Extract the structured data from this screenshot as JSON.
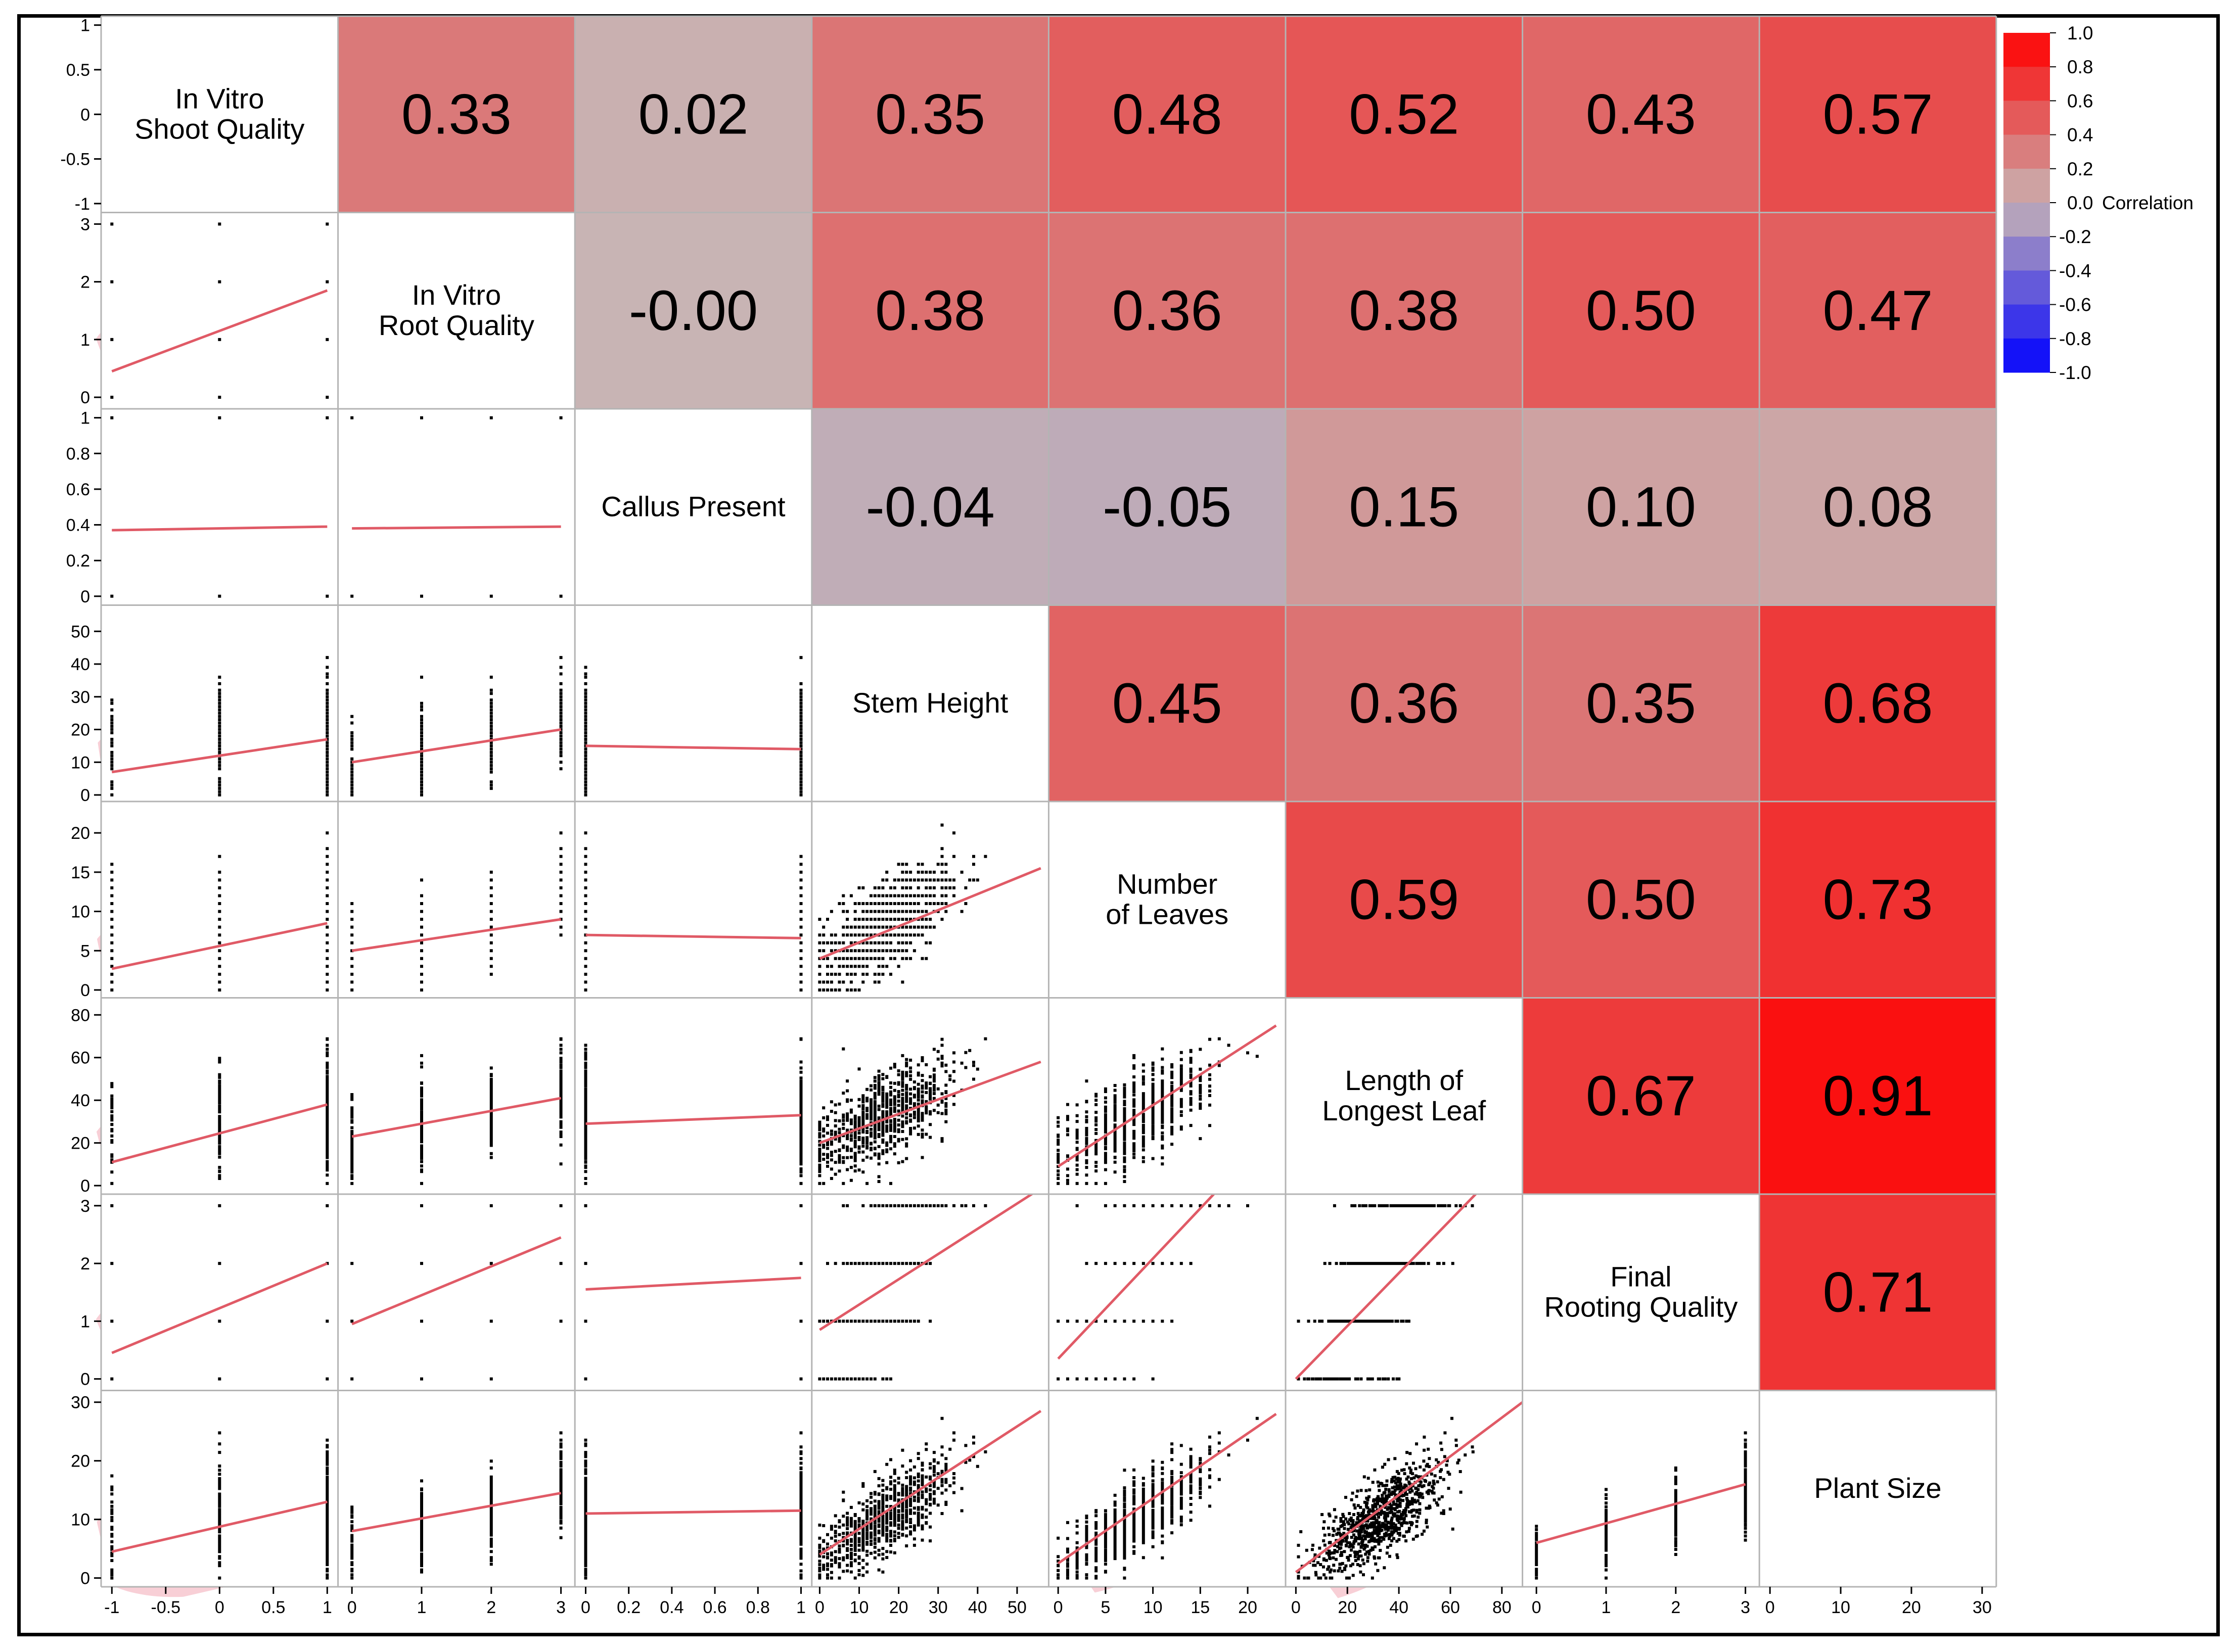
{
  "figure": {
    "legend_title": "Correlation"
  },
  "colors": {
    "positive_max": "#ff0000",
    "neutral": "#c8b4b4",
    "negative_max": "#0000ff",
    "fit_line": "#e05a66",
    "ellipse_fill": "#f8cfd6",
    "grid": "#b4b4b4",
    "points": "#000000"
  },
  "chart_data": {
    "type": "scatterplot-matrix",
    "variables": [
      {
        "name": "In Vitro Shoot Quality",
        "lines": [
          "In Vitro",
          "Shoot Quality"
        ],
        "range": [
          -1.1,
          1.1
        ],
        "ticks": [
          "-1",
          "-0.5",
          "0",
          "0.5",
          "1"
        ],
        "tick_values": [
          -1,
          -0.5,
          0,
          0.5,
          1
        ]
      },
      {
        "name": "In Vitro Root Quality",
        "lines": [
          "In Vitro",
          "Root Quality"
        ],
        "range": [
          -0.2,
          3.2
        ],
        "ticks": [
          "0",
          "1",
          "2",
          "3"
        ],
        "tick_values": [
          0,
          1,
          2,
          3
        ]
      },
      {
        "name": "Callus Present",
        "lines": [
          "Callus Present"
        ],
        "range": [
          -0.05,
          1.05
        ],
        "ticks": [
          "0",
          "0.2",
          "0.4",
          "0.6",
          "0.8",
          "1"
        ],
        "tick_values": [
          0,
          0.2,
          0.4,
          0.6,
          0.8,
          1
        ]
      },
      {
        "name": "Stem Height",
        "lines": [
          "Stem Height"
        ],
        "range": [
          -2,
          58
        ],
        "ticks": [
          "0",
          "10",
          "20",
          "30",
          "40",
          "50"
        ],
        "tick_values": [
          0,
          10,
          20,
          30,
          40,
          50
        ]
      },
      {
        "name": "Number of Leaves",
        "lines": [
          "Number",
          "of Leaves"
        ],
        "range": [
          -1,
          24
        ],
        "ticks": [
          "0",
          "5",
          "10",
          "15",
          "20"
        ],
        "tick_values": [
          0,
          5,
          10,
          15,
          20
        ]
      },
      {
        "name": "Length of Longest Leaf",
        "lines": [
          "Length of",
          "Longest Leaf"
        ],
        "range": [
          -4,
          88
        ],
        "ticks": [
          "0",
          "20",
          "40",
          "60",
          "80"
        ],
        "tick_values": [
          0,
          20,
          40,
          60,
          80
        ]
      },
      {
        "name": "Final Rooting Quality",
        "lines": [
          "Final",
          "Rooting Quality"
        ],
        "range": [
          -0.2,
          3.2
        ],
        "ticks": [
          "0",
          "1",
          "2",
          "3"
        ],
        "tick_values": [
          0,
          1,
          2,
          3
        ]
      },
      {
        "name": "Plant Size",
        "lines": [
          "Plant Size"
        ],
        "range": [
          -1.5,
          32
        ],
        "ticks": [
          "0",
          "10",
          "20",
          "30"
        ],
        "tick_values": [
          0,
          10,
          20,
          30
        ]
      }
    ],
    "correlations": [
      [
        1,
        0.33,
        0.02,
        0.35,
        0.48,
        0.52,
        0.43,
        0.57
      ],
      [
        0.33,
        1,
        -0.001,
        0.38,
        0.36,
        0.38,
        0.5,
        0.47
      ],
      [
        0.02,
        -0.001,
        1,
        -0.04,
        -0.05,
        0.15,
        0.1,
        0.08
      ],
      [
        0.35,
        0.38,
        -0.04,
        1,
        0.45,
        0.36,
        0.35,
        0.68
      ],
      [
        0.48,
        0.36,
        -0.05,
        0.45,
        1,
        0.59,
        0.5,
        0.73
      ],
      [
        0.52,
        0.38,
        0.15,
        0.36,
        0.59,
        1,
        0.67,
        0.91
      ],
      [
        0.43,
        0.5,
        0.1,
        0.35,
        0.5,
        0.67,
        1,
        0.71
      ],
      [
        0.57,
        0.47,
        0.08,
        0.68,
        0.73,
        0.91,
        0.71,
        1
      ]
    ],
    "correlation_labels": [
      [
        "",
        "0.33",
        "0.02",
        "0.35",
        "0.48",
        "0.52",
        "0.43",
        "0.57"
      ],
      [
        "",
        "",
        "-0.00",
        "0.38",
        "0.36",
        "0.38",
        "0.50",
        "0.47"
      ],
      [
        "",
        "",
        "",
        "-0.04",
        "-0.05",
        "0.15",
        "0.10",
        "0.08"
      ],
      [
        "",
        "",
        "",
        "",
        "0.45",
        "0.36",
        "0.35",
        "0.68"
      ],
      [
        "",
        "",
        "",
        "",
        "",
        "0.59",
        "0.50",
        "0.73"
      ],
      [
        "",
        "",
        "",
        "",
        "",
        "",
        "0.67",
        "0.91"
      ],
      [
        "",
        "",
        "",
        "",
        "",
        "",
        "",
        "0.71"
      ],
      [
        "",
        "",
        "",
        "",
        "",
        "",
        "",
        ""
      ]
    ],
    "fit_lines": {
      "1-0": [
        [
          -1,
          0.45
        ],
        [
          1,
          1.85
        ]
      ],
      "2-0": [
        [
          -1,
          0.37
        ],
        [
          1,
          0.39
        ]
      ],
      "2-1": [
        [
          0,
          0.38
        ],
        [
          3,
          0.39
        ]
      ],
      "3-0": [
        [
          -1,
          7
        ],
        [
          1,
          17
        ]
      ],
      "3-1": [
        [
          0,
          10
        ],
        [
          3,
          20
        ]
      ],
      "3-2": [
        [
          0,
          15
        ],
        [
          1,
          14
        ]
      ],
      "4-0": [
        [
          -1,
          2.7
        ],
        [
          1,
          8.5
        ]
      ],
      "4-1": [
        [
          0,
          5
        ],
        [
          3,
          9
        ]
      ],
      "4-2": [
        [
          0,
          7
        ],
        [
          1,
          6.6
        ]
      ],
      "4-3": [
        [
          0,
          4
        ],
        [
          56,
          15.5
        ]
      ],
      "5-0": [
        [
          -1,
          11
        ],
        [
          1,
          38
        ]
      ],
      "5-1": [
        [
          0,
          23
        ],
        [
          3,
          41
        ]
      ],
      "5-2": [
        [
          0,
          29
        ],
        [
          1,
          33
        ]
      ],
      "5-3": [
        [
          0,
          20
        ],
        [
          56,
          58
        ]
      ],
      "5-4": [
        [
          0,
          9
        ],
        [
          23,
          75
        ]
      ],
      "6-0": [
        [
          -1,
          0.45
        ],
        [
          1,
          2.0
        ]
      ],
      "6-1": [
        [
          0,
          0.95
        ],
        [
          3,
          2.45
        ]
      ],
      "6-2": [
        [
          0,
          1.55
        ],
        [
          1,
          1.75
        ]
      ],
      "6-3": [
        [
          0,
          0.85
        ],
        [
          56,
          3.3
        ]
      ],
      "6-4": [
        [
          0,
          0.35
        ],
        [
          17,
          3.3
        ]
      ],
      "6-5": [
        [
          0,
          0
        ],
        [
          72,
          3.3
        ]
      ],
      "7-0": [
        [
          -1,
          4.5
        ],
        [
          1,
          13
        ]
      ],
      "7-1": [
        [
          0,
          8
        ],
        [
          3,
          14.5
        ]
      ],
      "7-2": [
        [
          0,
          11
        ],
        [
          1,
          11.5
        ]
      ],
      "7-3": [
        [
          0,
          4
        ],
        [
          56,
          28.5
        ]
      ],
      "7-4": [
        [
          0,
          2.5
        ],
        [
          23,
          28
        ]
      ],
      "7-5": [
        [
          0,
          1
        ],
        [
          88,
          30
        ]
      ],
      "7-6": [
        [
          0,
          6
        ],
        [
          3,
          16
        ]
      ]
    },
    "legend": {
      "min": -1.0,
      "max": 1.0,
      "ticks": [
        "1.0",
        "0.8",
        "0.6",
        "0.4",
        "0.2",
        "0.0",
        "-0.2",
        "-0.4",
        "-0.6",
        "-0.8",
        "-1.0"
      ],
      "tick_values": [
        1.0,
        0.8,
        0.6,
        0.4,
        0.2,
        0.0,
        -0.2,
        -0.4,
        -0.6,
        -0.8,
        -1.0
      ]
    }
  }
}
